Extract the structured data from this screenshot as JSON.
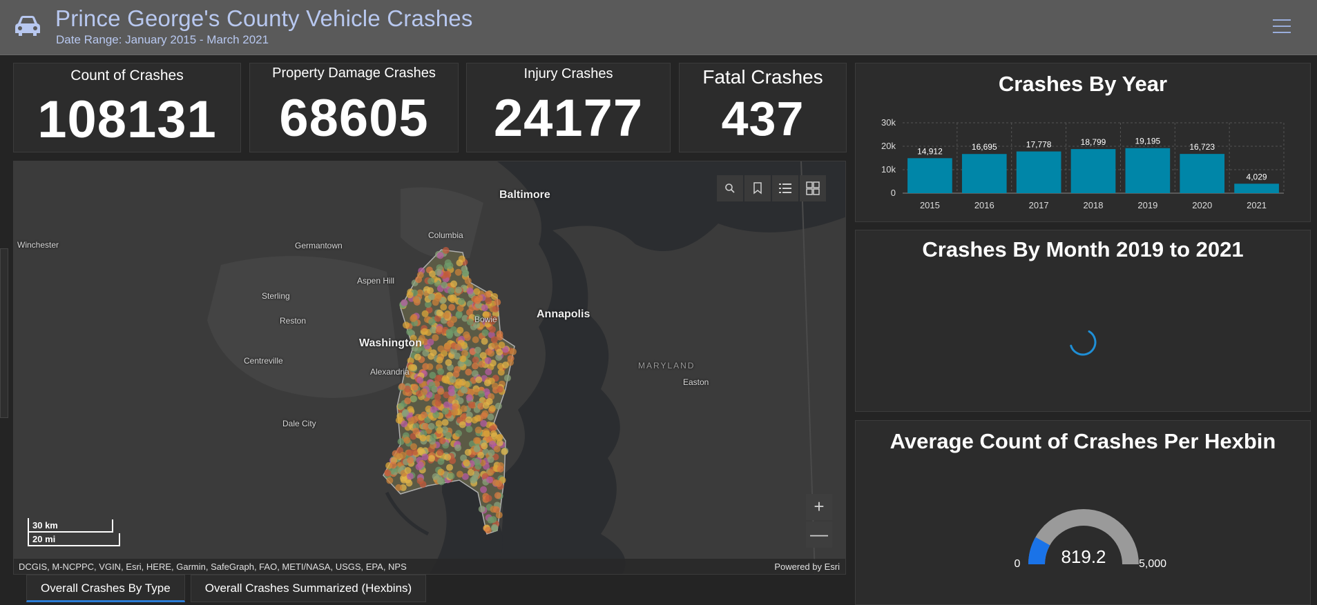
{
  "header": {
    "title": "Prince George's County Vehicle Crashes",
    "subtitle": "Date Range: January 2015 - March 2021",
    "logo_icon": "car-icon",
    "menu_icon": "hamburger-menu-icon"
  },
  "kpis": {
    "count": {
      "label": "Count of Crashes",
      "value": "108131"
    },
    "property": {
      "label": "Property Damage Crashes",
      "value": "68605"
    },
    "injury": {
      "label": "Injury Crashes",
      "value": "24177"
    },
    "fatal": {
      "label": "Fatal Crashes",
      "value": "437"
    }
  },
  "map": {
    "tools": [
      "search-icon",
      "bookmark-icon",
      "legend-list-icon",
      "basemap-gallery-icon"
    ],
    "zoom_in": "+",
    "zoom_out": "—",
    "scale_km": "30 km",
    "scale_mi": "20 mi",
    "attribution": "DCGIS, M-NCPPC, VGIN, Esri, HERE, Garmin, SafeGraph, FAO, METI/NASA, USGS, EPA, NPS",
    "powered_by": "Powered by Esri",
    "places": {
      "baltimore": "Baltimore",
      "columbia": "Columbia",
      "winchester": "Winchester",
      "germantown": "Germantown",
      "aspen_hill": "Aspen Hill",
      "sterling": "Sterling",
      "reston": "Reston",
      "bowie": "Bowie",
      "annapolis": "Annapolis",
      "washington": "Washington",
      "centreville": "Centreville",
      "alexandria": "Alexandria",
      "maryland": "MARYLAND",
      "easton": "Easton",
      "dale_city": "Dale City"
    }
  },
  "tabs": [
    {
      "label": "Overall Crashes By Type",
      "active": true
    },
    {
      "label": "Overall Crashes Summarized (Hexbins)",
      "active": false
    }
  ],
  "year_chart": {
    "title": "Crashes By Year",
    "accent": "#0086a8"
  },
  "chart_data": [
    {
      "type": "bar",
      "title": "Crashes By Year",
      "categories": [
        "2015",
        "2016",
        "2017",
        "2018",
        "2019",
        "2020",
        "2021"
      ],
      "values": [
        14912,
        16695,
        17778,
        18799,
        19195,
        16723,
        4029
      ],
      "data_labels": [
        "14,912",
        "16,695",
        "17,778",
        "18,799",
        "19,195",
        "16,723",
        "4,029"
      ],
      "yticks": [
        "0",
        "10k",
        "20k",
        "30k"
      ],
      "ylim": [
        0,
        30000
      ],
      "grid": true,
      "color": "#0086a8"
    }
  ],
  "month_chart": {
    "title": "Crashes By Month 2019 to 2021",
    "state": "loading",
    "spinner_icon": "loading-spinner-icon"
  },
  "gauge": {
    "title": "Average Count of Crashes Per Hexbin",
    "value": 819.2,
    "value_label": "819.2",
    "min_label": "0",
    "max_label": "5,000",
    "min": 0,
    "max": 5000,
    "fill_color": "#1a73e8",
    "track_color": "#9a9a9a"
  }
}
